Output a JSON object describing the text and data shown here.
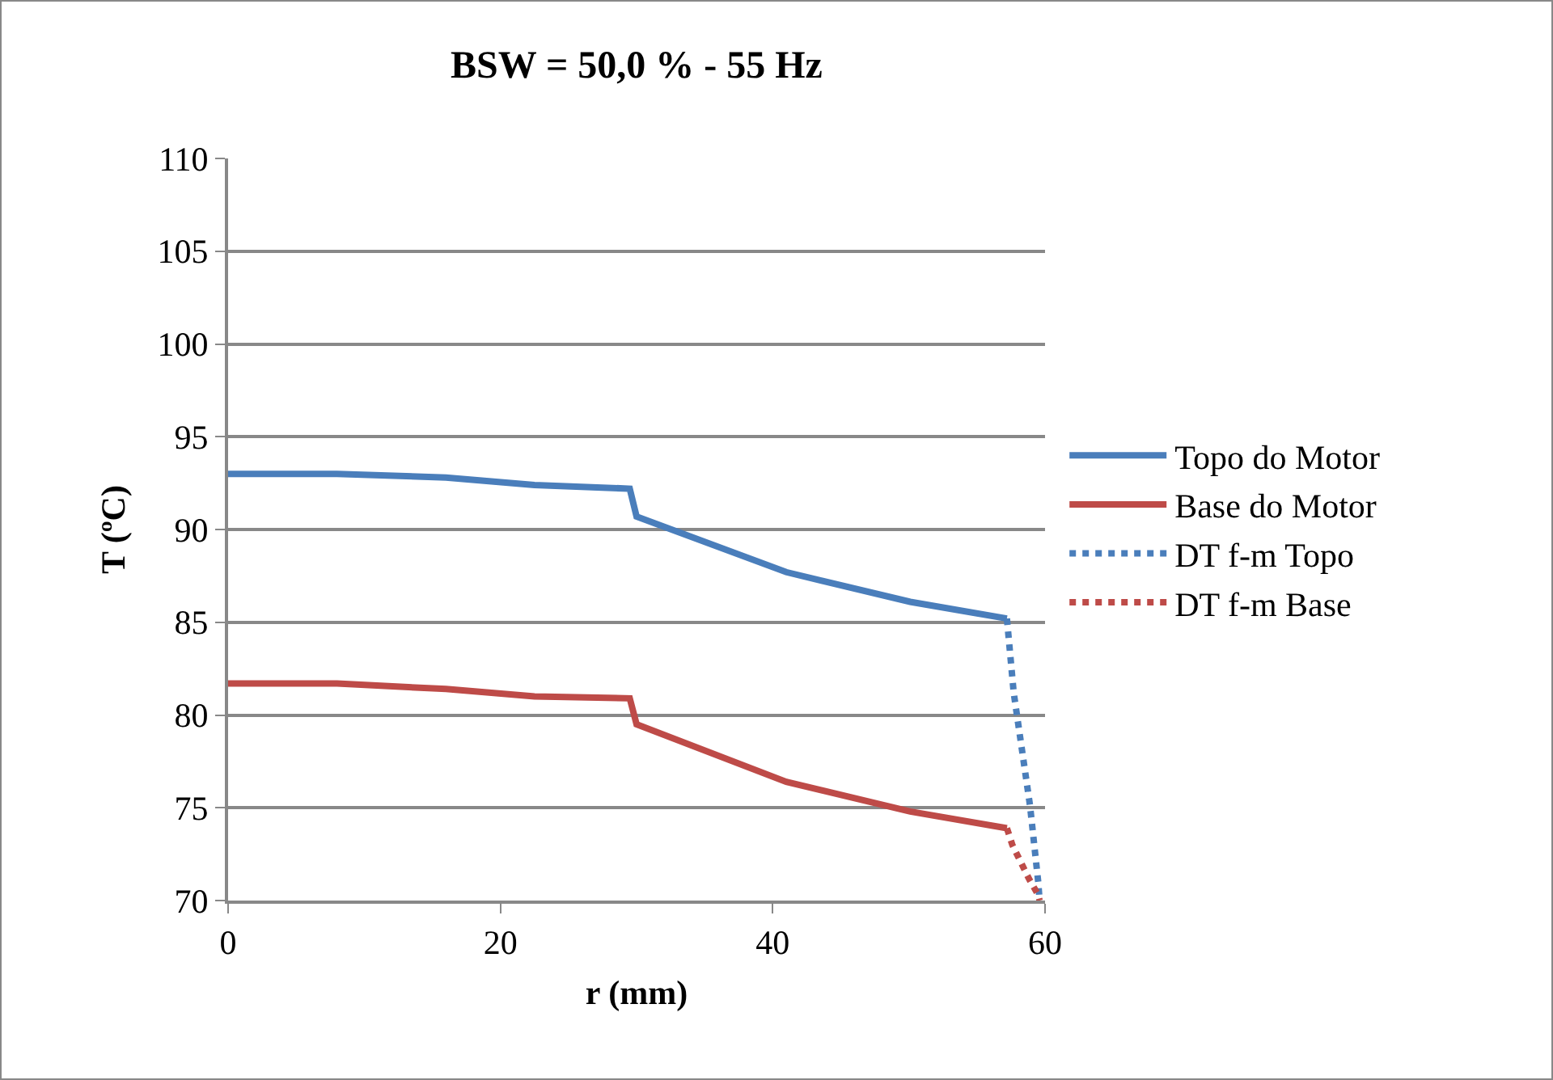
{
  "chart_data": {
    "type": "line",
    "title": "BSW = 50,0 % - 55 Hz",
    "xlabel": "r (mm)",
    "ylabel": "T (ºC)",
    "xlim": [
      0,
      60
    ],
    "xticks": [
      0,
      20,
      40,
      60
    ],
    "ylim": [
      70,
      110
    ],
    "yticks": [
      70,
      75,
      80,
      85,
      90,
      95,
      100,
      105,
      110
    ],
    "grid": "y",
    "legend": "right",
    "marker": "none",
    "series": [
      {
        "name": "Topo do Motor",
        "color": "#4a7ebb",
        "line_style": "solid",
        "x": [
          0,
          8,
          16,
          22.5,
          29.5,
          30,
          41,
          50.1,
          57.2
        ],
        "values": [
          93.0,
          93.0,
          92.8,
          92.4,
          92.2,
          90.7,
          87.7,
          86.1,
          85.2
        ]
      },
      {
        "name": "Base do Motor",
        "color": "#be4b48",
        "line_style": "solid",
        "x": [
          0,
          8,
          16,
          22.5,
          29.5,
          30,
          41,
          50.1,
          57.2
        ],
        "values": [
          81.7,
          81.7,
          81.4,
          81.0,
          80.9,
          79.5,
          76.4,
          74.8,
          73.9
        ]
      },
      {
        "name": "DT f-m Topo",
        "color": "#4a7ebb",
        "line_style": "dotted",
        "x": [
          57.2,
          57.7,
          58.9,
          59.5,
          59.6
        ],
        "values": [
          85.2,
          81.2,
          75.1,
          71.0,
          70.0
        ]
      },
      {
        "name": "DT f-m Base",
        "color": "#be4b48",
        "line_style": "dotted",
        "x": [
          57.2,
          57.6,
          58.8,
          59.5,
          59.6
        ],
        "values": [
          73.9,
          73.0,
          71.2,
          70.3,
          70.0
        ]
      }
    ]
  }
}
